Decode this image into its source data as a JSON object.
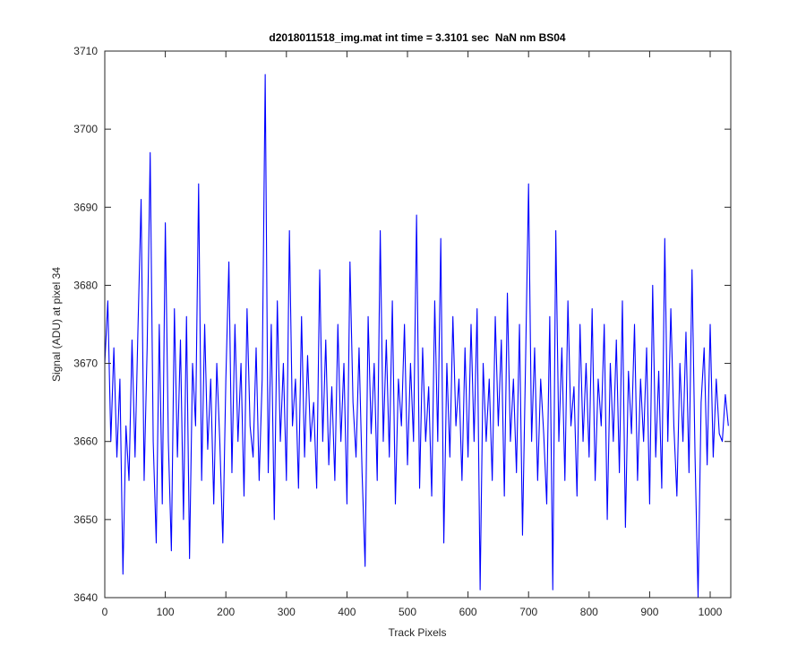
{
  "chart_data": {
    "type": "line",
    "title": "d2018011518_img.mat int time = 3.3101 sec  NaN nm BS04",
    "x_label": "Track Pixels",
    "y_label": "Signal (ADU) at pixel 34",
    "xlim": [
      0,
      1034
    ],
    "ylim": [
      3640,
      3710
    ],
    "xticks": [
      0,
      100,
      200,
      300,
      400,
      500,
      600,
      700,
      800,
      900,
      1000
    ],
    "yticks": [
      3640,
      3650,
      3660,
      3670,
      3680,
      3690,
      3700,
      3710
    ],
    "grid": false,
    "x": [
      0,
      5,
      10,
      15,
      20,
      25,
      30,
      35,
      40,
      45,
      50,
      55,
      60,
      65,
      70,
      75,
      80,
      85,
      90,
      95,
      100,
      105,
      110,
      115,
      120,
      125,
      130,
      135,
      140,
      145,
      150,
      155,
      160,
      165,
      170,
      175,
      180,
      185,
      190,
      195,
      200,
      205,
      210,
      215,
      220,
      225,
      230,
      235,
      240,
      245,
      250,
      255,
      260,
      265,
      270,
      275,
      280,
      285,
      290,
      295,
      300,
      305,
      310,
      315,
      320,
      325,
      330,
      335,
      340,
      345,
      350,
      355,
      360,
      365,
      370,
      375,
      380,
      385,
      390,
      395,
      400,
      405,
      410,
      415,
      420,
      425,
      430,
      435,
      440,
      445,
      450,
      455,
      460,
      465,
      470,
      475,
      480,
      485,
      490,
      495,
      500,
      505,
      510,
      515,
      520,
      525,
      530,
      535,
      540,
      545,
      550,
      555,
      560,
      565,
      570,
      575,
      580,
      585,
      590,
      595,
      600,
      605,
      610,
      615,
      620,
      625,
      630,
      635,
      640,
      645,
      650,
      655,
      660,
      665,
      670,
      675,
      680,
      685,
      690,
      695,
      700,
      705,
      710,
      715,
      720,
      725,
      730,
      735,
      740,
      745,
      750,
      755,
      760,
      765,
      770,
      775,
      780,
      785,
      790,
      795,
      800,
      805,
      810,
      815,
      820,
      825,
      830,
      835,
      840,
      845,
      850,
      855,
      860,
      865,
      870,
      875,
      880,
      885,
      890,
      895,
      900,
      905,
      910,
      915,
      920,
      925,
      930,
      935,
      940,
      945,
      950,
      955,
      960,
      965,
      970,
      975,
      980,
      985,
      990,
      995,
      1000,
      1005,
      1010,
      1015,
      1020,
      1025,
      1030
    ],
    "series": [
      {
        "color": "#0000ff",
        "values": [
          3670,
          3678,
          3660,
          3672,
          3658,
          3668,
          3643,
          3662,
          3655,
          3673,
          3658,
          3675,
          3691,
          3655,
          3672,
          3697,
          3660,
          3647,
          3675,
          3652,
          3688,
          3660,
          3646,
          3677,
          3658,
          3673,
          3650,
          3676,
          3645,
          3670,
          3662,
          3693,
          3655,
          3675,
          3659,
          3668,
          3652,
          3670,
          3660,
          3647,
          3668,
          3683,
          3656,
          3675,
          3660,
          3670,
          3653,
          3677,
          3662,
          3658,
          3672,
          3655,
          3668,
          3707,
          3656,
          3675,
          3650,
          3678,
          3660,
          3670,
          3655,
          3687,
          3662,
          3668,
          3654,
          3676,
          3658,
          3671,
          3660,
          3665,
          3654,
          3682,
          3660,
          3673,
          3657,
          3667,
          3655,
          3675,
          3660,
          3670,
          3652,
          3683,
          3665,
          3658,
          3672,
          3656,
          3644,
          3676,
          3661,
          3670,
          3655,
          3687,
          3660,
          3673,
          3658,
          3678,
          3652,
          3668,
          3662,
          3675,
          3657,
          3670,
          3660,
          3689,
          3654,
          3672,
          3660,
          3667,
          3653,
          3678,
          3660,
          3686,
          3647,
          3670,
          3658,
          3676,
          3662,
          3668,
          3655,
          3672,
          3658,
          3675,
          3660,
          3677,
          3641,
          3670,
          3660,
          3668,
          3655,
          3676,
          3662,
          3673,
          3653,
          3679,
          3660,
          3668,
          3656,
          3675,
          3648,
          3670,
          3693,
          3660,
          3672,
          3655,
          3668,
          3661,
          3652,
          3676,
          3641,
          3687,
          3660,
          3672,
          3655,
          3678,
          3662,
          3667,
          3653,
          3675,
          3660,
          3670,
          3658,
          3677,
          3655,
          3668,
          3662,
          3675,
          3650,
          3670,
          3660,
          3673,
          3656,
          3678,
          3649,
          3669,
          3661,
          3675,
          3655,
          3668,
          3660,
          3672,
          3652,
          3680,
          3658,
          3669,
          3654,
          3686,
          3660,
          3677,
          3662,
          3653,
          3670,
          3660,
          3674,
          3656,
          3682,
          3658,
          3640,
          3665,
          3672,
          3657,
          3675,
          3658,
          3668,
          3661,
          3660,
          3666,
          3662
        ]
      }
    ]
  }
}
